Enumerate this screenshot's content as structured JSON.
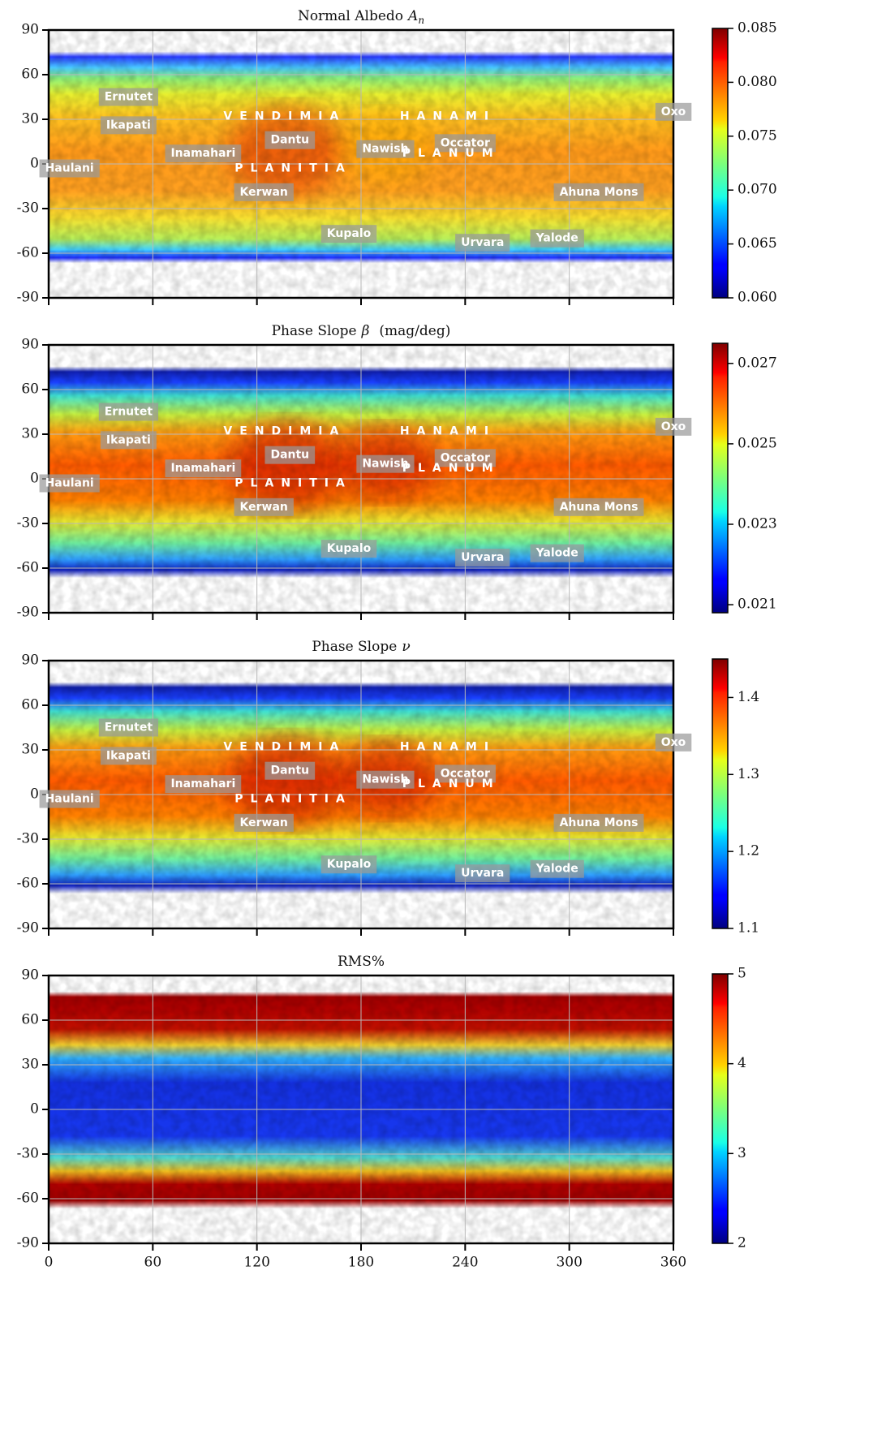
{
  "chart_data": [
    {
      "type": "heatmap",
      "title": "Normal Albedo",
      "title_symbol": "A",
      "title_subscript": "n",
      "colormap": "jet",
      "xlim": [
        0,
        360
      ],
      "xticks": [
        0,
        60,
        120,
        180,
        240,
        300,
        360
      ],
      "xtick_labels": false,
      "ylim": [
        -90,
        90
      ],
      "yticks": [
        90,
        60,
        30,
        0,
        -30,
        -60,
        -90
      ],
      "grid": true,
      "colorbar": {
        "lim": [
          0.06,
          0.085
        ],
        "ticks": [
          {
            "value": 0.085,
            "label": "0.085"
          },
          {
            "value": 0.08,
            "label": "0.080"
          },
          {
            "value": 0.075,
            "label": "0.075"
          },
          {
            "value": 0.07,
            "label": "0.070"
          },
          {
            "value": 0.065,
            "label": "0.065"
          },
          {
            "value": 0.06,
            "label": "0.060"
          }
        ]
      },
      "annotations": [
        {
          "text": "Ernutet",
          "x": 46,
          "y": 45,
          "boxed": true
        },
        {
          "text": "Ikapati",
          "x": 46,
          "y": 26,
          "boxed": true
        },
        {
          "text": "Haulani",
          "x": 12,
          "y": -3,
          "boxed": true
        },
        {
          "text": "Inamahari",
          "x": 89,
          "y": 7,
          "boxed": true
        },
        {
          "text": "Dantu",
          "x": 139,
          "y": 16,
          "boxed": true
        },
        {
          "text": "Kerwan",
          "x": 124,
          "y": -19,
          "boxed": true
        },
        {
          "text": "Kupalo",
          "x": 173,
          "y": -47,
          "boxed": true
        },
        {
          "text": "Nawish",
          "x": 194,
          "y": 10,
          "boxed": true
        },
        {
          "text": "Occator",
          "x": 240,
          "y": 14,
          "boxed": true
        },
        {
          "text": "Urvara",
          "x": 250,
          "y": -53,
          "boxed": true
        },
        {
          "text": "Yalode",
          "x": 293,
          "y": -50,
          "boxed": true
        },
        {
          "text": "Ahuna Mons",
          "x": 317,
          "y": -19,
          "boxed": true
        },
        {
          "text": "Oxo",
          "x": 360,
          "y": 35,
          "boxed": true
        },
        {
          "text": "VENDIMIA",
          "x": 136,
          "y": 32,
          "boxed": false
        },
        {
          "text": "PLANITIA",
          "x": 141,
          "y": -3,
          "boxed": false
        },
        {
          "text": "HANAMI",
          "x": 230,
          "y": 32,
          "boxed": false
        },
        {
          "text": "PLANUM",
          "x": 232,
          "y": 7,
          "boxed": false
        }
      ]
    },
    {
      "type": "heatmap",
      "title": "Phase Slope",
      "title_symbol": "β",
      "title_unit": "(mag/deg)",
      "colormap": "jet",
      "xlim": [
        0,
        360
      ],
      "xticks": [
        0,
        60,
        120,
        180,
        240,
        300,
        360
      ],
      "xtick_labels": false,
      "ylim": [
        -90,
        90
      ],
      "yticks": [
        90,
        60,
        30,
        0,
        -30,
        -60,
        -90
      ],
      "grid": true,
      "colorbar": {
        "lim": [
          0.0208,
          0.0275
        ],
        "ticks": [
          0.027,
          0.025,
          0.023,
          0.021
        ]
      },
      "annotations": [
        {
          "text": "Ernutet",
          "x": 46,
          "y": 45,
          "boxed": true
        },
        {
          "text": "Ikapati",
          "x": 46,
          "y": 26,
          "boxed": true
        },
        {
          "text": "Haulani",
          "x": 12,
          "y": -3,
          "boxed": true
        },
        {
          "text": "Inamahari",
          "x": 89,
          "y": 7,
          "boxed": true
        },
        {
          "text": "Dantu",
          "x": 139,
          "y": 16,
          "boxed": true
        },
        {
          "text": "Kerwan",
          "x": 124,
          "y": -19,
          "boxed": true
        },
        {
          "text": "Kupalo",
          "x": 173,
          "y": -47,
          "boxed": true
        },
        {
          "text": "Nawish",
          "x": 194,
          "y": 10,
          "boxed": true
        },
        {
          "text": "Occator",
          "x": 240,
          "y": 14,
          "boxed": true
        },
        {
          "text": "Urvara",
          "x": 250,
          "y": -53,
          "boxed": true
        },
        {
          "text": "Yalode",
          "x": 293,
          "y": -50,
          "boxed": true
        },
        {
          "text": "Ahuna Mons",
          "x": 317,
          "y": -19,
          "boxed": true
        },
        {
          "text": "Oxo",
          "x": 360,
          "y": 35,
          "boxed": true
        },
        {
          "text": "VENDIMIA",
          "x": 136,
          "y": 32,
          "boxed": false
        },
        {
          "text": "PLANITIA",
          "x": 141,
          "y": -3,
          "boxed": false
        },
        {
          "text": "HANAMI",
          "x": 230,
          "y": 32,
          "boxed": false
        },
        {
          "text": "PLANUM",
          "x": 232,
          "y": 7,
          "boxed": false
        }
      ]
    },
    {
      "type": "heatmap",
      "title": "Phase Slope",
      "title_symbol": "ν",
      "colormap": "jet",
      "xlim": [
        0,
        360
      ],
      "xticks": [
        0,
        60,
        120,
        180,
        240,
        300,
        360
      ],
      "xtick_labels": false,
      "ylim": [
        -90,
        90
      ],
      "yticks": [
        90,
        60,
        30,
        0,
        -30,
        -60,
        -90
      ],
      "grid": true,
      "colorbar": {
        "lim": [
          1.1,
          1.45
        ],
        "ticks": [
          1.4,
          1.3,
          1.2,
          1.1
        ]
      },
      "annotations": [
        {
          "text": "Ernutet",
          "x": 46,
          "y": 45,
          "boxed": true
        },
        {
          "text": "Ikapati",
          "x": 46,
          "y": 26,
          "boxed": true
        },
        {
          "text": "Haulani",
          "x": 12,
          "y": -3,
          "boxed": true
        },
        {
          "text": "Inamahari",
          "x": 89,
          "y": 7,
          "boxed": true
        },
        {
          "text": "Dantu",
          "x": 139,
          "y": 16,
          "boxed": true
        },
        {
          "text": "Kerwan",
          "x": 124,
          "y": -19,
          "boxed": true
        },
        {
          "text": "Kupalo",
          "x": 173,
          "y": -47,
          "boxed": true
        },
        {
          "text": "Nawish",
          "x": 194,
          "y": 10,
          "boxed": true
        },
        {
          "text": "Occator",
          "x": 240,
          "y": 14,
          "boxed": true
        },
        {
          "text": "Urvara",
          "x": 250,
          "y": -53,
          "boxed": true
        },
        {
          "text": "Yalode",
          "x": 293,
          "y": -50,
          "boxed": true
        },
        {
          "text": "Ahuna Mons",
          "x": 317,
          "y": -19,
          "boxed": true
        },
        {
          "text": "Oxo",
          "x": 360,
          "y": 35,
          "boxed": true
        },
        {
          "text": "VENDIMIA",
          "x": 136,
          "y": 32,
          "boxed": false
        },
        {
          "text": "PLANITIA",
          "x": 141,
          "y": -3,
          "boxed": false
        },
        {
          "text": "HANAMI",
          "x": 230,
          "y": 32,
          "boxed": false
        },
        {
          "text": "PLANUM",
          "x": 232,
          "y": 7,
          "boxed": false
        }
      ]
    },
    {
      "type": "heatmap",
      "title": "RMS%",
      "colormap": "jet",
      "xlim": [
        0,
        360
      ],
      "xticks": [
        0,
        60,
        120,
        180,
        240,
        300,
        360
      ],
      "xtick_labels": true,
      "ylim": [
        -90,
        90
      ],
      "yticks": [
        90,
        60,
        30,
        0,
        -30,
        -60,
        -90
      ],
      "grid": true,
      "colorbar": {
        "lim": [
          2,
          5
        ],
        "ticks": [
          5,
          4,
          3,
          2
        ]
      },
      "annotations": []
    }
  ]
}
